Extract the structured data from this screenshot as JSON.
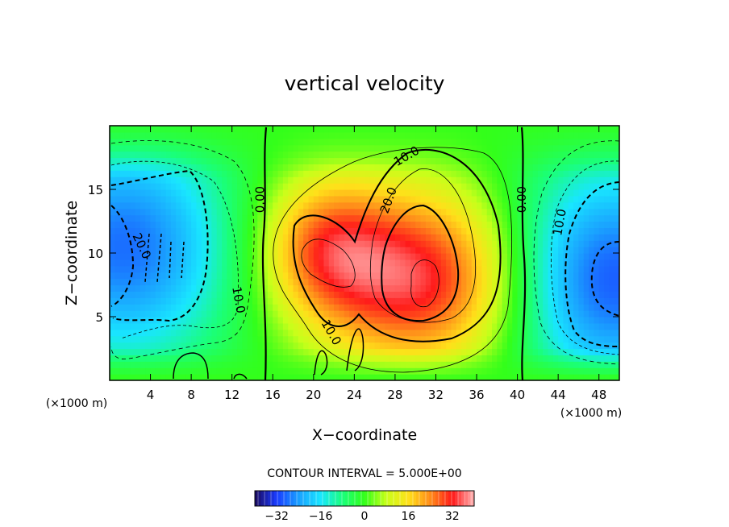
{
  "chart_data": {
    "type": "heatmap",
    "title": "vertical velocity",
    "xlabel": "X−coordinate",
    "ylabel": "Z−coordinate",
    "x_units_left": "(×1000 m)",
    "x_units_right": "(×1000 m)",
    "xlim": [
      0,
      50
    ],
    "ylim": [
      0,
      20
    ],
    "x_ticks": [
      4,
      8,
      12,
      16,
      20,
      24,
      28,
      32,
      36,
      40,
      44,
      48
    ],
    "y_ticks": [
      5,
      10,
      15
    ],
    "grid": false,
    "contour_interval_text": "CONTOUR INTERVAL = 5.000E+00",
    "contour_interval": 5.0,
    "colorbar": {
      "range": [
        -40,
        40
      ],
      "ticks": [
        -32,
        -16,
        0,
        16,
        32
      ],
      "tick_labels": [
        "−32",
        "−16",
        "0",
        "16",
        "32"
      ],
      "colormap": [
        "#1a0a5e",
        "#1a3cff",
        "#1aa0ff",
        "#19e6ff",
        "#1aff7a",
        "#33ff1a",
        "#c8ff1a",
        "#ffe01a",
        "#ff8c1a",
        "#ff1a1a",
        "#ffb4b4"
      ]
    },
    "features": [
      {
        "name": "updraft-max",
        "x": 30.5,
        "z": 8.0,
        "value": 34
      },
      {
        "name": "updraft-secondary",
        "x": 21.0,
        "z": 10.5,
        "value": 22
      },
      {
        "name": "downdraft-left",
        "x": 1.5,
        "z": 10.5,
        "value": -28
      },
      {
        "name": "downdraft-right",
        "x": 49.0,
        "z": 8.0,
        "value": -30
      }
    ],
    "contour_labels": [
      {
        "text": "0.00",
        "x": 14.9,
        "z": 14.2,
        "angle": -90
      },
      {
        "text": "0.00",
        "x": 40.6,
        "z": 14.2,
        "angle": -90
      },
      {
        "text": "10.0",
        "x": 29.2,
        "z": 17.5,
        "angle": -30
      },
      {
        "text": "20.0",
        "x": 27.5,
        "z": 14.1,
        "angle": -70
      },
      {
        "text": "20.0",
        "x": 3.0,
        "z": 10.5,
        "angle": 65
      },
      {
        "text": "10.0",
        "x": 12.5,
        "z": 6.3,
        "angle": 80
      },
      {
        "text": "10.0",
        "x": 21.6,
        "z": 3.7,
        "angle": 60
      },
      {
        "text": "10.0",
        "x": 44.3,
        "z": 12.4,
        "angle": -80
      }
    ]
  }
}
